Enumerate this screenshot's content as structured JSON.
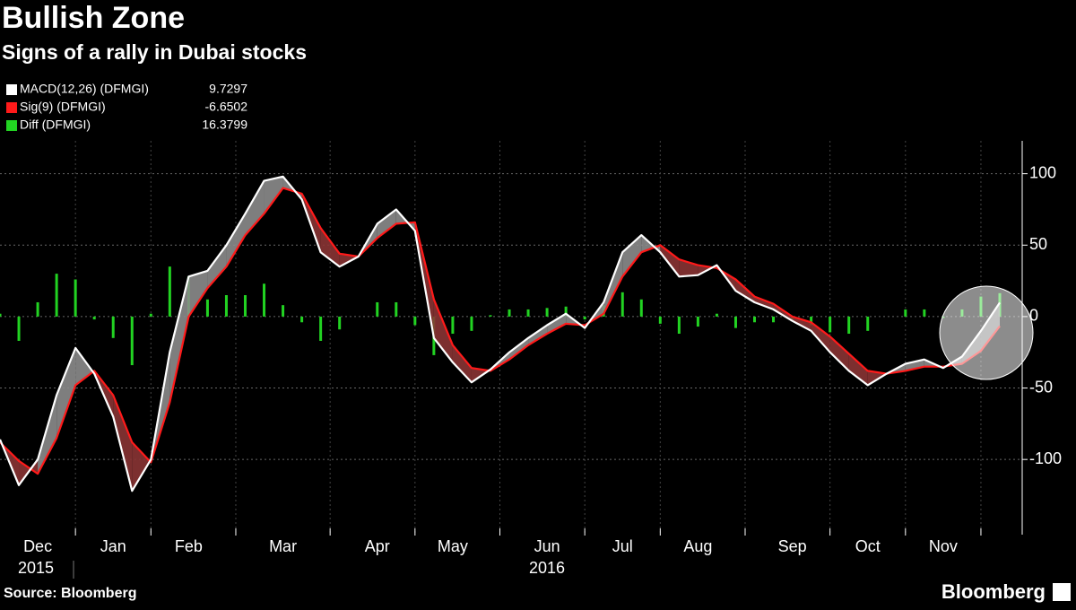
{
  "chart_data": {
    "type": "line",
    "title": "Bullish Zone",
    "subtitle": "Signs of a rally in Dubai stocks",
    "source": "Source: Bloomberg",
    "brand": "Bloomberg",
    "years": [
      "2015",
      "2016"
    ],
    "categories": [
      null,
      null,
      "Dec",
      null,
      null,
      null,
      "Jan",
      null,
      null,
      null,
      "Feb",
      null,
      null,
      null,
      null,
      "Mar",
      null,
      null,
      null,
      null,
      "Apr",
      null,
      null,
      null,
      "May",
      null,
      null,
      null,
      null,
      "Jun",
      null,
      null,
      null,
      "Jul",
      null,
      null,
      null,
      "Aug",
      null,
      null,
      null,
      null,
      "Sep",
      null,
      null,
      null,
      "Oct",
      null,
      null,
      null,
      "Nov",
      null,
      null,
      null
    ],
    "series": [
      {
        "name": "MACD(12,26) (DFMGI)",
        "color": "#ffffff",
        "values": [
          -86,
          -118,
          -100,
          -55,
          -22,
          -40,
          -70,
          -122,
          -100,
          -25,
          28,
          32,
          50,
          72,
          95,
          98,
          82,
          45,
          35,
          42,
          65,
          75,
          60,
          -15,
          -32,
          -46,
          -37,
          -25,
          -15,
          -6,
          2,
          -8,
          10,
          45,
          57,
          45,
          28,
          29,
          36,
          18,
          10,
          5,
          -3,
          -10,
          -25,
          -38,
          -48,
          -40,
          -33,
          -30,
          -36,
          -28,
          -10,
          9.7297
        ]
      },
      {
        "name": "Sig(9) (DFMGI)",
        "color": "#ff1a1a",
        "values": [
          -88,
          -101,
          -110,
          -85,
          -48,
          -38,
          -55,
          -88,
          -102,
          -60,
          0,
          20,
          35,
          57,
          72,
          90,
          86,
          62,
          44,
          42,
          55,
          65,
          66,
          12,
          -20,
          -36,
          -38,
          -30,
          -20,
          -12,
          -5,
          -6,
          2,
          28,
          45,
          50,
          40,
          36,
          34,
          26,
          14,
          9,
          0,
          -4,
          -14,
          -26,
          -38,
          -40,
          -38,
          -35,
          -35,
          -33,
          -24,
          -6.6502
        ]
      },
      {
        "name": "Diff (DFMGI)",
        "color": "#22d322",
        "values": [
          2,
          -17,
          10,
          30,
          26,
          -2,
          -15,
          -34,
          2,
          35,
          28,
          12,
          15,
          15,
          23,
          8,
          -4,
          -17,
          -9,
          0,
          10,
          10,
          -6,
          -27,
          -12,
          -10,
          1,
          5,
          5,
          6,
          7,
          -2,
          8,
          17,
          12,
          -5,
          -12,
          -7,
          2,
          -8,
          -4,
          -4,
          -3,
          -6,
          -11,
          -12,
          -10,
          0,
          5,
          5,
          -1,
          5,
          14,
          16.3799
        ]
      }
    ],
    "ylim": [
      -152,
      123
    ],
    "yticks": [
      -100,
      -50,
      0,
      50,
      100
    ],
    "grid": true
  }
}
